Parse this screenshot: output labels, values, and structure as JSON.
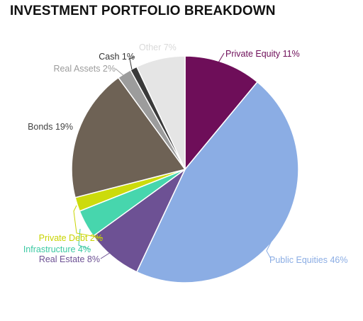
{
  "chart_data": {
    "type": "pie",
    "title": "INVESTMENT PORTFOLIO BREAKDOWN",
    "slices": [
      {
        "name": "Private Equity",
        "value": 11,
        "label": "Private Equity 11%",
        "color": "#6e0e59"
      },
      {
        "name": "Public Equities",
        "value": 46,
        "label": "Public Equities 46%",
        "color": "#8badE4"
      },
      {
        "name": "Real Estate",
        "value": 8,
        "label": "Real Estate 8%",
        "color": "#6d5194"
      },
      {
        "name": "Infrastructure",
        "value": 4,
        "label": "Infrastructure 4%",
        "color": "#47d6ad"
      },
      {
        "name": "Private Debt",
        "value": 2,
        "label": "Private Debt 2%",
        "color": "#ccdb0c"
      },
      {
        "name": "Bonds",
        "value": 19,
        "label": "Bonds 19%",
        "color": "#6e6255"
      },
      {
        "name": "Real Assets",
        "value": 2,
        "label": "Real Assets 2%",
        "color": "#9c9c9c"
      },
      {
        "name": "Cash",
        "value": 1,
        "label": "Cash 1%",
        "color": "#3a3a3a"
      },
      {
        "name": "Other",
        "value": 7,
        "label": "Other 7%",
        "color": "#e5e5e5"
      }
    ],
    "label_colors": [
      "#6e0e59",
      "#8badE4",
      "#6d5194",
      "#3cc9a3",
      "#c8d400",
      "#444444",
      "#9c9c9c",
      "#333333",
      "#d9d9d9"
    ]
  }
}
